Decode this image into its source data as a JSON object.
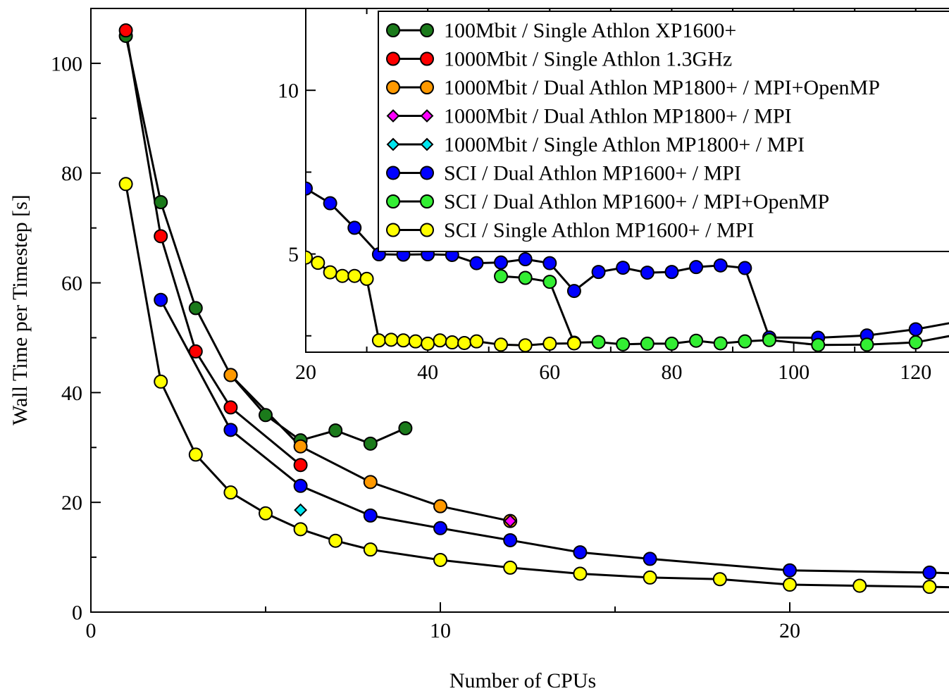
{
  "chart_data": [
    {
      "type": "line",
      "xlabel": "Number of CPUs",
      "ylabel": "Wall Time per Timestep [s]",
      "xlim": [
        0,
        25
      ],
      "ylim": [
        0,
        110
      ],
      "x_ticks": [
        0,
        10,
        20
      ],
      "y_ticks": [
        0,
        20,
        40,
        60,
        80,
        100
      ],
      "grid": false,
      "series": [
        {
          "name": "100Mbit / Single Athlon XP1600+",
          "color": "#1b7a1b",
          "marker": "circle",
          "x": [
            1,
            2,
            3,
            4,
            5,
            6,
            7,
            8,
            9
          ],
          "y": [
            105,
            74.7,
            55.4,
            43.2,
            35.9,
            31.3,
            33.1,
            30.7,
            33.5
          ]
        },
        {
          "name": "1000Mbit / Single Athlon 1.3GHz",
          "color": "#ff0000",
          "marker": "circle",
          "x": [
            1,
            2,
            3,
            4,
            6
          ],
          "y": [
            106,
            68.5,
            47.5,
            37.3,
            26.8
          ]
        },
        {
          "name": "1000Mbit / Dual Athlon MP1800+ / MPI+OpenMP",
          "color": "#ff9900",
          "marker": "circle",
          "x": [
            4,
            6,
            8,
            10,
            12
          ],
          "y": [
            43.2,
            30.2,
            23.7,
            19.3,
            16.6
          ]
        },
        {
          "name": "1000Mbit / Dual Athlon MP1800+ / MPI",
          "color": "#ff00ff",
          "marker": "diamond",
          "x": [
            12
          ],
          "y": [
            16.6
          ]
        },
        {
          "name": "1000Mbit / Single Athlon MP1800+ / MPI",
          "color": "#00e5ee",
          "marker": "diamond",
          "x": [
            6
          ],
          "y": [
            18.6
          ]
        },
        {
          "name": "SCI / Dual Athlon MP1600+ / MPI",
          "color": "#0000ff",
          "marker": "circle",
          "x": [
            2,
            4,
            6,
            8,
            10,
            12,
            14,
            16,
            20,
            24,
            25
          ],
          "y": [
            56.9,
            33.2,
            23.0,
            17.6,
            15.3,
            13.1,
            10.9,
            9.7,
            7.6,
            7.2,
            7.0
          ]
        },
        {
          "name": "SCI / Dual Athlon MP1600+ / MPI+OpenMP",
          "color": "#33ee33",
          "marker": "circle",
          "x": [],
          "y": []
        },
        {
          "name": "SCI / Single Athlon MP1600+ / MPI",
          "color": "#ffff00",
          "marker": "circle",
          "x": [
            1,
            2,
            3,
            4,
            5,
            6,
            7,
            8,
            10,
            12,
            14,
            16,
            18,
            20,
            22,
            24,
            25
          ],
          "y": [
            78,
            42,
            28.7,
            21.8,
            18.0,
            15.1,
            13.0,
            11.4,
            9.5,
            8.1,
            7.0,
            6.3,
            6.0,
            5.0,
            4.8,
            4.6,
            4.5
          ]
        }
      ]
    },
    {
      "type": "line",
      "inset": true,
      "xlim": [
        20,
        128
      ],
      "ylim": [
        2,
        12.5
      ],
      "x_ticks": [
        20,
        40,
        60,
        80,
        100,
        120
      ],
      "y_ticks": [
        5,
        10
      ],
      "grid": false,
      "series": [
        {
          "name": "SCI / Dual Athlon MP1600+ / MPI",
          "color": "#0000ff",
          "marker": "circle",
          "x": [
            20,
            24,
            28,
            32,
            36,
            40,
            44,
            48,
            52,
            56,
            60,
            64,
            68,
            72,
            76,
            80,
            84,
            88,
            92,
            96,
            104,
            112,
            120,
            128
          ],
          "y": [
            7.0,
            6.55,
            5.8,
            4.99,
            4.98,
            4.99,
            4.97,
            4.72,
            4.74,
            4.84,
            4.72,
            3.87,
            4.45,
            4.58,
            4.43,
            4.45,
            4.6,
            4.65,
            4.57,
            2.45,
            2.44,
            2.51,
            2.7,
            2.97
          ]
        },
        {
          "name": "SCI / Dual Athlon MP1600+ / MPI+OpenMP",
          "color": "#33ee33",
          "marker": "circle",
          "x": [
            52,
            56,
            60,
            64,
            68,
            72,
            76,
            80,
            84,
            88,
            92,
            96,
            104,
            112,
            120,
            128
          ],
          "y": [
            4.32,
            4.27,
            4.15,
            2.29,
            2.31,
            2.24,
            2.26,
            2.26,
            2.35,
            2.27,
            2.33,
            2.37,
            2.22,
            2.23,
            2.3,
            2.58
          ]
        },
        {
          "name": "SCI / Single Athlon MP1600+ / MPI",
          "color": "#ffff00",
          "marker": "circle",
          "x": [
            20,
            22,
            24,
            26,
            28,
            30,
            32,
            34,
            36,
            38,
            40,
            42,
            44,
            46,
            48,
            52,
            56,
            60,
            64
          ],
          "y": [
            4.89,
            4.73,
            4.44,
            4.33,
            4.33,
            4.24,
            2.36,
            2.38,
            2.36,
            2.33,
            2.26,
            2.36,
            2.3,
            2.28,
            2.33,
            2.23,
            2.21,
            2.26,
            2.27
          ]
        }
      ]
    }
  ]
}
